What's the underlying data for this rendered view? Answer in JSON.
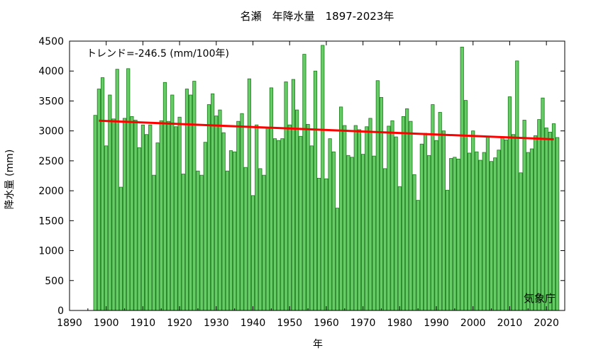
{
  "chart_data": {
    "type": "bar",
    "title": "名瀬　年降水量　1897-2023年",
    "xlabel": "年",
    "ylabel": "降水量 (mm)",
    "annotation": "トレンド=-246.5 (mm/100年)",
    "source": "気象庁",
    "xlim": [
      1890,
      2025
    ],
    "ylim": [
      0,
      4500
    ],
    "xticks": [
      1890,
      1900,
      1910,
      1920,
      1930,
      1940,
      1950,
      1960,
      1970,
      1980,
      1990,
      2000,
      2010,
      2020
    ],
    "yticks": [
      0,
      500,
      1000,
      1500,
      2000,
      2500,
      3000,
      3500,
      4000,
      4500
    ],
    "grid": false,
    "colors": {
      "bar_fill": "#66cc66",
      "bar_stroke": "#1a7a1a",
      "trend": "#ff0000"
    },
    "x": [
      1897,
      1898,
      1899,
      1900,
      1901,
      1902,
      1903,
      1904,
      1905,
      1906,
      1907,
      1908,
      1909,
      1910,
      1911,
      1912,
      1913,
      1914,
      1915,
      1916,
      1917,
      1918,
      1919,
      1920,
      1921,
      1922,
      1923,
      1924,
      1925,
      1926,
      1927,
      1928,
      1929,
      1930,
      1931,
      1932,
      1933,
      1934,
      1935,
      1936,
      1937,
      1938,
      1939,
      1940,
      1941,
      1942,
      1943,
      1944,
      1945,
      1946,
      1947,
      1948,
      1949,
      1950,
      1951,
      1952,
      1953,
      1954,
      1955,
      1956,
      1957,
      1958,
      1959,
      1960,
      1961,
      1962,
      1963,
      1964,
      1965,
      1966,
      1967,
      1968,
      1969,
      1970,
      1971,
      1972,
      1973,
      1974,
      1975,
      1976,
      1977,
      1978,
      1979,
      1980,
      1981,
      1982,
      1983,
      1984,
      1985,
      1986,
      1987,
      1988,
      1989,
      1990,
      1991,
      1992,
      1993,
      1994,
      1995,
      1996,
      1997,
      1998,
      1999,
      2000,
      2001,
      2002,
      2003,
      2004,
      2005,
      2006,
      2007,
      2008,
      2009,
      2010,
      2011,
      2012,
      2013,
      2014,
      2015,
      2016,
      2017,
      2018,
      2019,
      2020,
      2021,
      2022,
      2023
    ],
    "values": [
      3260,
      3700,
      3890,
      2750,
      3600,
      3200,
      4030,
      2060,
      3210,
      4040,
      3240,
      3180,
      2720,
      3100,
      2940,
      3100,
      2260,
      2800,
      3170,
      3810,
      3160,
      3600,
      3070,
      3230,
      2280,
      3700,
      3600,
      3830,
      2330,
      2260,
      2810,
      3440,
      3620,
      3250,
      3350,
      2970,
      2330,
      2670,
      2650,
      3160,
      3290,
      2390,
      3870,
      1920,
      3100,
      2370,
      2260,
      3050,
      3720,
      2870,
      2840,
      2870,
      3820,
      3100,
      3860,
      3350,
      2910,
      4280,
      3110,
      2750,
      4000,
      2210,
      4430,
      2200,
      2870,
      2650,
      1710,
      3400,
      3090,
      2590,
      2560,
      3090,
      3020,
      2610,
      3070,
      3210,
      2580,
      3840,
      3560,
      2370,
      3080,
      3170,
      2900,
      2070,
      3240,
      3370,
      3160,
      2270,
      1840,
      2780,
      2960,
      2590,
      3440,
      2840,
      3310,
      3000,
      2010,
      2540,
      2560,
      2530,
      4400,
      3510,
      2630,
      3000,
      2650,
      2510,
      2640,
      2900,
      2490,
      2550,
      2680,
      2900,
      2850,
      3570,
      2940,
      4170,
      2300,
      3180,
      2640,
      2700,
      2920,
      3190,
      3550,
      3050,
      2980,
      3120,
      2890
    ],
    "trend": {
      "x": [
        1898,
        2022
      ],
      "y": [
        3170,
        2860
      ]
    }
  }
}
